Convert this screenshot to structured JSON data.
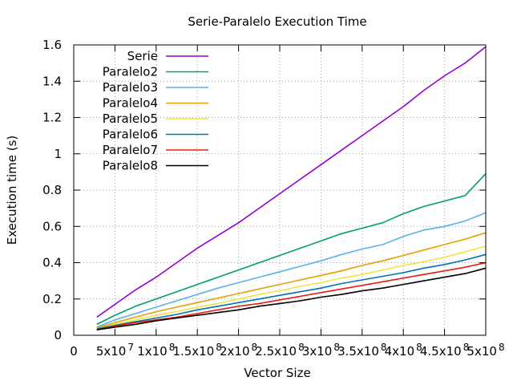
{
  "chart_data": {
    "type": "line",
    "title": "Serie-Paralelo Execution Time",
    "xlabel": "Vector Size",
    "ylabel": "Execution time (s)",
    "xlim": [
      0,
      500000000
    ],
    "ylim": [
      0,
      1.6
    ],
    "grid": true,
    "legend_position": "top-left",
    "x_ticks": [
      {
        "value": 0,
        "label": "0"
      },
      {
        "value": 50000000,
        "label": "5x10",
        "exp": "7"
      },
      {
        "value": 100000000,
        "label": "1x10",
        "exp": "8"
      },
      {
        "value": 150000000,
        "label": "1.5x10",
        "exp": "8"
      },
      {
        "value": 200000000,
        "label": "2x10",
        "exp": "8"
      },
      {
        "value": 250000000,
        "label": "2.5x10",
        "exp": "8"
      },
      {
        "value": 300000000,
        "label": "3x10",
        "exp": "8"
      },
      {
        "value": 350000000,
        "label": "3.5x10",
        "exp": "8"
      },
      {
        "value": 400000000,
        "label": "4x10",
        "exp": "8"
      },
      {
        "value": 450000000,
        "label": "4.5x10",
        "exp": "8"
      },
      {
        "value": 500000000,
        "label": "5x10",
        "exp": "8"
      }
    ],
    "y_ticks": [
      {
        "value": 0,
        "label": "0"
      },
      {
        "value": 0.2,
        "label": "0.2"
      },
      {
        "value": 0.4,
        "label": "0.4"
      },
      {
        "value": 0.6,
        "label": "0.6"
      },
      {
        "value": 0.8,
        "label": "0.8"
      },
      {
        "value": 1.0,
        "label": "1"
      },
      {
        "value": 1.2,
        "label": "1.2"
      },
      {
        "value": 1.4,
        "label": "1.4"
      },
      {
        "value": 1.6,
        "label": "1.6"
      }
    ],
    "x": [
      28000000,
      50000000,
      75000000,
      100000000,
      125000000,
      150000000,
      175000000,
      200000000,
      225000000,
      250000000,
      275000000,
      300000000,
      325000000,
      350000000,
      375000000,
      400000000,
      425000000,
      450000000,
      475000000,
      500000000
    ],
    "series": [
      {
        "name": "Serie",
        "color": "#9400d3",
        "values": [
          0.1,
          0.17,
          0.25,
          0.32,
          0.4,
          0.48,
          0.55,
          0.62,
          0.7,
          0.78,
          0.86,
          0.94,
          1.02,
          1.1,
          1.18,
          1.26,
          1.35,
          1.43,
          1.5,
          1.59
        ]
      },
      {
        "name": "Paralelo2",
        "color": "#009e73",
        "values": [
          0.06,
          0.11,
          0.16,
          0.2,
          0.24,
          0.28,
          0.32,
          0.36,
          0.4,
          0.44,
          0.48,
          0.52,
          0.56,
          0.59,
          0.62,
          0.67,
          0.71,
          0.74,
          0.77,
          0.89
        ]
      },
      {
        "name": "Paralelo3",
        "color": "#56b4e9",
        "values": [
          0.045,
          0.085,
          0.12,
          0.155,
          0.19,
          0.225,
          0.26,
          0.29,
          0.32,
          0.35,
          0.38,
          0.41,
          0.445,
          0.475,
          0.5,
          0.545,
          0.58,
          0.6,
          0.63,
          0.675
        ]
      },
      {
        "name": "Paralelo4",
        "color": "#e69f00",
        "values": [
          0.04,
          0.07,
          0.1,
          0.13,
          0.155,
          0.18,
          0.205,
          0.23,
          0.255,
          0.28,
          0.305,
          0.33,
          0.355,
          0.385,
          0.41,
          0.44,
          0.47,
          0.5,
          0.53,
          0.565
        ]
      },
      {
        "name": "Paralelo5",
        "color": "#f0e442",
        "values": [
          0.035,
          0.06,
          0.085,
          0.11,
          0.13,
          0.155,
          0.175,
          0.2,
          0.225,
          0.245,
          0.27,
          0.29,
          0.315,
          0.335,
          0.36,
          0.385,
          0.405,
          0.43,
          0.46,
          0.49
        ]
      },
      {
        "name": "Paralelo6",
        "color": "#0072b2",
        "values": [
          0.035,
          0.055,
          0.075,
          0.095,
          0.115,
          0.14,
          0.16,
          0.18,
          0.2,
          0.22,
          0.24,
          0.26,
          0.285,
          0.305,
          0.325,
          0.345,
          0.37,
          0.39,
          0.415,
          0.445
        ]
      },
      {
        "name": "Paralelo7",
        "color": "#e51e10",
        "values": [
          0.03,
          0.05,
          0.07,
          0.085,
          0.1,
          0.12,
          0.14,
          0.16,
          0.175,
          0.195,
          0.215,
          0.235,
          0.255,
          0.275,
          0.295,
          0.315,
          0.335,
          0.355,
          0.375,
          0.4
        ]
      },
      {
        "name": "Paralelo8",
        "color": "#000000",
        "values": [
          0.03,
          0.045,
          0.06,
          0.08,
          0.095,
          0.11,
          0.125,
          0.14,
          0.16,
          0.175,
          0.19,
          0.21,
          0.225,
          0.245,
          0.26,
          0.28,
          0.3,
          0.32,
          0.34,
          0.37
        ]
      }
    ]
  }
}
